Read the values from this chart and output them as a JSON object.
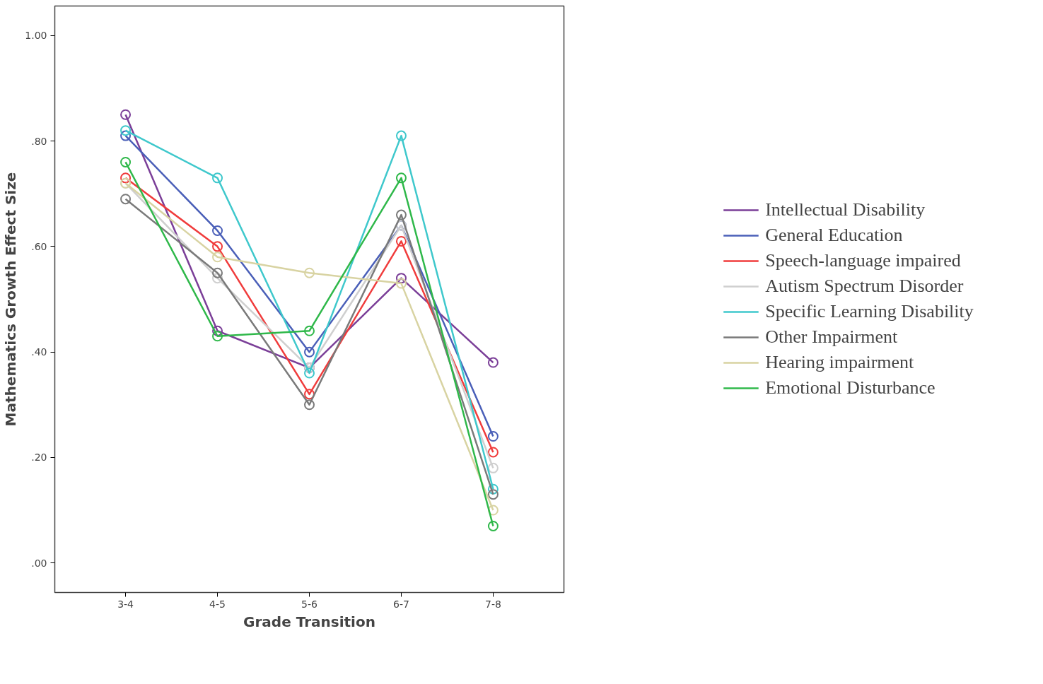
{
  "chart_data": {
    "type": "line",
    "xlabel": "Grade Transition",
    "ylabel": "Mathematics Growth Effect Size",
    "categories": [
      "3-4",
      "4-5",
      "5-6",
      "6-7",
      "7-8"
    ],
    "ylim": [
      -0.056,
      1.056
    ],
    "yticks": [
      {
        "value": 0,
        "label": ".00"
      },
      {
        "value": 0.2,
        "label": ".20"
      },
      {
        "value": 0.4,
        "label": ".40"
      },
      {
        "value": 0.6,
        "label": ".60"
      },
      {
        "value": 0.8,
        "label": ".80"
      },
      {
        "value": 1.0,
        "label": "1.00"
      }
    ],
    "grid": false,
    "legend": "right",
    "marker": "circle",
    "line_style": "solid",
    "series": [
      {
        "name": "Intellectual Disability",
        "color": "#7b3f98",
        "values": [
          0.85,
          0.44,
          0.37,
          0.54,
          0.38
        ]
      },
      {
        "name": "General Education",
        "color": "#4a5fb8",
        "values": [
          0.81,
          0.63,
          0.4,
          0.64,
          0.24
        ]
      },
      {
        "name": "Speech-language impaired",
        "color": "#f03c3c",
        "values": [
          0.73,
          0.6,
          0.32,
          0.61,
          0.21
        ]
      },
      {
        "name": "Autism Spectrum Disorder",
        "color": "#cfcfcf",
        "values": [
          0.72,
          0.54,
          0.37,
          0.64,
          0.18
        ]
      },
      {
        "name": "Specific Learning Disability",
        "color": "#3fc8cc",
        "values": [
          0.82,
          0.73,
          0.36,
          0.81,
          0.14
        ]
      },
      {
        "name": "Other Impairment",
        "color": "#7a7a7a",
        "values": [
          0.69,
          0.55,
          0.3,
          0.66,
          0.13
        ]
      },
      {
        "name": "Hearing impairment",
        "color": "#d8d3a2",
        "values": [
          0.72,
          0.58,
          0.55,
          0.53,
          0.1
        ]
      },
      {
        "name": "Emotional Disturbance",
        "color": "#2fb84a",
        "values": [
          0.76,
          0.43,
          0.44,
          0.73,
          0.07
        ]
      }
    ]
  }
}
